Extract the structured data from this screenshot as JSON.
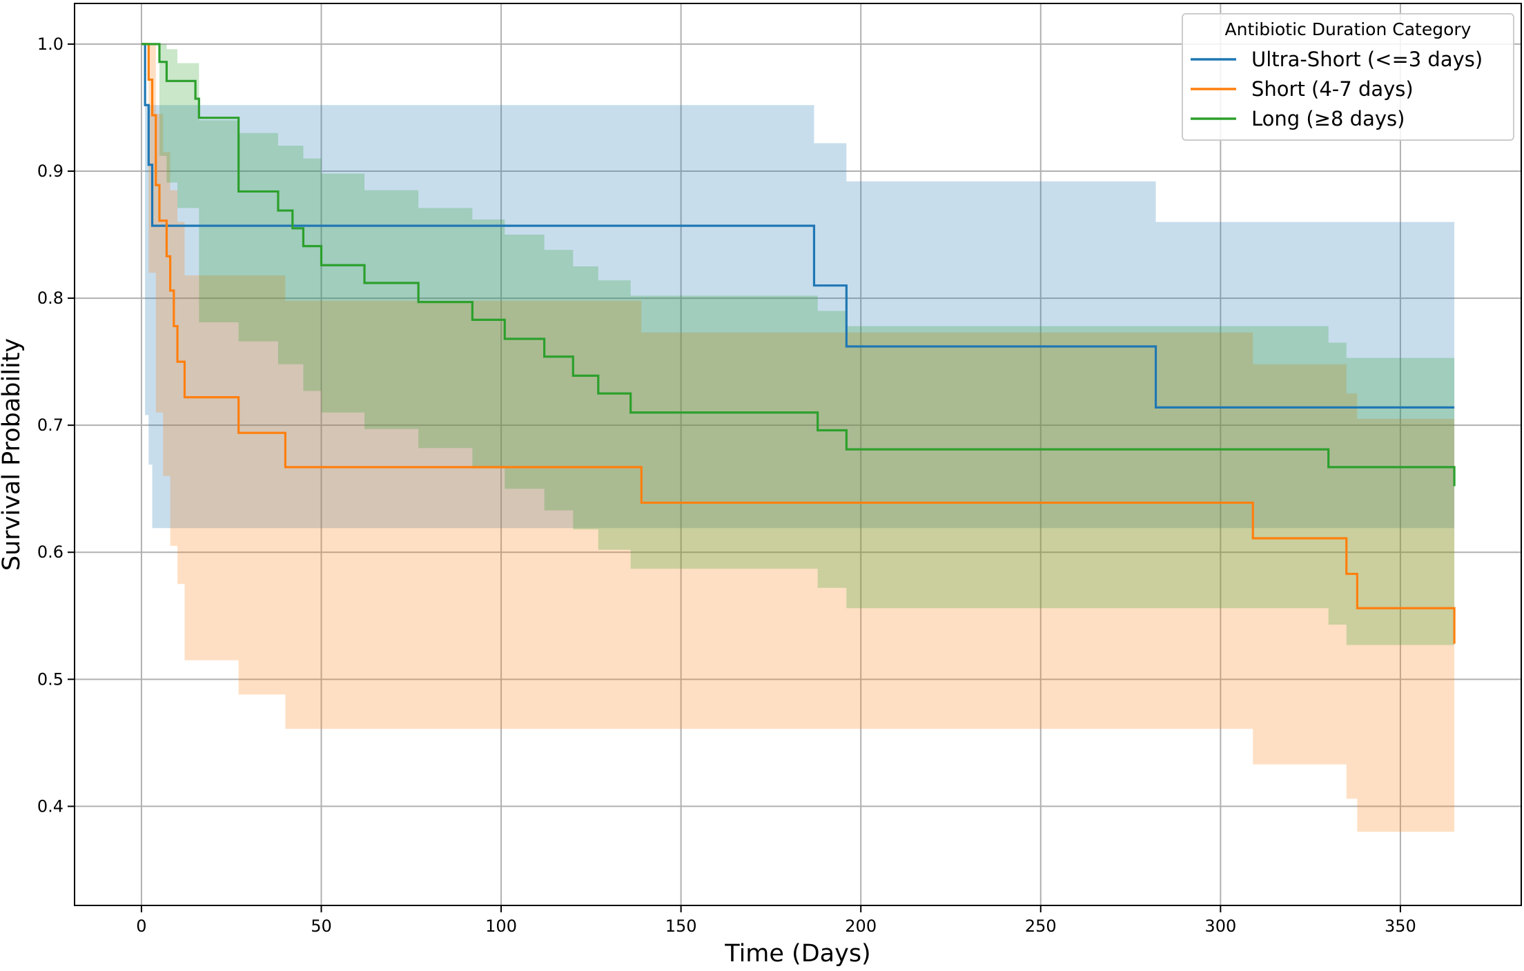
{
  "chart_data": {
    "type": "line",
    "subtype": "kaplan-meier survival curves with confidence bands",
    "title": "",
    "xlabel": "Time (Days)",
    "ylabel": "Survival Probability",
    "xlim": [
      -18.6,
      383.6
    ],
    "ylim": [
      0.322,
      1.032
    ],
    "x_ticks": [
      0,
      50,
      100,
      150,
      200,
      250,
      300,
      350
    ],
    "x_tick_labels": [
      "0",
      "50",
      "100",
      "150",
      "200",
      "250",
      "300",
      "350"
    ],
    "y_ticks": [
      0.4,
      0.5,
      0.6,
      0.7,
      0.8,
      0.9,
      1.0
    ],
    "y_tick_labels": [
      "0.4",
      "0.5",
      "0.6",
      "0.7",
      "0.8",
      "0.9",
      "1.0"
    ],
    "grid": true,
    "legend": {
      "title": "Antibiotic Duration Category",
      "placement": "top-right"
    },
    "series": [
      {
        "name": "Ultra-Short (<=3 days)",
        "color": "#1f77b4",
        "x": [
          0,
          1,
          2,
          3,
          187,
          196,
          282,
          365
        ],
        "y": [
          1.0,
          0.952,
          0.905,
          0.857,
          0.81,
          0.762,
          0.714,
          0.714
        ],
        "ci_x": [
          0,
          1,
          2,
          3,
          187,
          196,
          282,
          365
        ],
        "ci_upper": [
          1.0,
          0.952,
          0.952,
          0.952,
          0.922,
          0.892,
          0.86,
          0.86
        ],
        "ci_lower": [
          1.0,
          0.708,
          0.669,
          0.619,
          0.619,
          0.619,
          0.619,
          0.619
        ]
      },
      {
        "name": "Short (4-7 days)",
        "color": "#ff7f0e",
        "x": [
          0,
          2,
          3,
          4,
          5,
          7,
          8,
          9,
          10,
          12,
          27,
          40,
          139,
          309,
          335,
          338,
          365
        ],
        "y": [
          1.0,
          0.972,
          0.944,
          0.889,
          0.861,
          0.833,
          0.806,
          0.778,
          0.75,
          0.722,
          0.694,
          0.667,
          0.639,
          0.611,
          0.583,
          0.556,
          0.528
        ],
        "ci_x": [
          0,
          2,
          4,
          6,
          8,
          10,
          12,
          27,
          40,
          139,
          309,
          335,
          338,
          365
        ],
        "ci_upper": [
          1.0,
          1.0,
          0.945,
          0.915,
          0.885,
          0.86,
          0.818,
          0.818,
          0.798,
          0.773,
          0.748,
          0.725,
          0.705,
          0.705
        ],
        "ci_lower": [
          1.0,
          0.82,
          0.71,
          0.66,
          0.605,
          0.575,
          0.515,
          0.488,
          0.461,
          0.461,
          0.433,
          0.406,
          0.38,
          0.353
        ]
      },
      {
        "name": "Long (≥8 days)",
        "color": "#2ca02c",
        "x": [
          0,
          3,
          5,
          7,
          15,
          16,
          27,
          38,
          42,
          45,
          50,
          62,
          77,
          92,
          101,
          112,
          120,
          127,
          136,
          188,
          196,
          330,
          365
        ],
        "y": [
          1.0,
          1.0,
          0.986,
          0.971,
          0.957,
          0.942,
          0.884,
          0.869,
          0.855,
          0.841,
          0.826,
          0.812,
          0.797,
          0.783,
          0.768,
          0.754,
          0.739,
          0.725,
          0.71,
          0.696,
          0.681,
          0.667,
          0.652
        ],
        "ci_x": [
          0,
          5,
          7,
          10,
          16,
          27,
          38,
          45,
          50,
          62,
          77,
          92,
          101,
          112,
          120,
          127,
          136,
          188,
          196,
          330,
          335,
          365
        ],
        "ci_upper": [
          1.0,
          1.0,
          0.996,
          0.985,
          0.94,
          0.93,
          0.92,
          0.91,
          0.898,
          0.885,
          0.871,
          0.862,
          0.85,
          0.838,
          0.825,
          0.814,
          0.802,
          0.79,
          0.778,
          0.765,
          0.753,
          0.753
        ],
        "ci_lower": [
          1.0,
          0.912,
          0.891,
          0.871,
          0.781,
          0.766,
          0.748,
          0.727,
          0.71,
          0.697,
          0.682,
          0.666,
          0.65,
          0.633,
          0.618,
          0.602,
          0.587,
          0.572,
          0.556,
          0.543,
          0.527,
          0.527
        ]
      }
    ]
  }
}
